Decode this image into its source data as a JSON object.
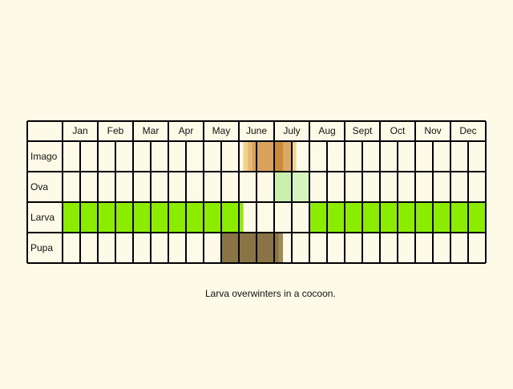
{
  "chart_data": {
    "type": "table",
    "months": [
      "Jan",
      "Feb",
      "Mar",
      "Apr",
      "May",
      "June",
      "July",
      "Aug",
      "Sept",
      "Oct",
      "Nov",
      "Dec"
    ],
    "halves_per_month": 2,
    "stages": [
      {
        "label": "Imago",
        "segments": [
          {
            "start": 10.25,
            "end": 10.5,
            "color": "#f2d08e"
          },
          {
            "start": 10.5,
            "end": 10.75,
            "color": "#e8b876"
          },
          {
            "start": 10.75,
            "end": 12.0,
            "color": "#d9a35e"
          },
          {
            "start": 12.0,
            "end": 12.5,
            "color": "#c98a3e"
          },
          {
            "start": 12.5,
            "end": 13.0,
            "color": "#dba865"
          },
          {
            "start": 13.0,
            "end": 13.25,
            "color": "#f2d08e"
          }
        ]
      },
      {
        "label": "Ova",
        "segments": [
          {
            "start": 12.0,
            "end": 13.0,
            "color": "#c8efab"
          },
          {
            "start": 13.0,
            "end": 14.0,
            "color": "#d6f4bd"
          }
        ]
      },
      {
        "label": "Larva",
        "segments": [
          {
            "start": 0.0,
            "end": 10.25,
            "color": "#8cec00"
          },
          {
            "start": 14.0,
            "end": 24.0,
            "color": "#8cec00"
          }
        ]
      },
      {
        "label": "Pupa",
        "segments": [
          {
            "start": 9.0,
            "end": 12.25,
            "color": "#8a7445"
          },
          {
            "start": 12.25,
            "end": 12.5,
            "color": "#a08a57"
          }
        ]
      }
    ],
    "note": "Larva overwinters in a cocoon.",
    "colors": {
      "background": "#fdfbe8",
      "grid": "#000000",
      "imago": "#d9a35e",
      "ova": "#c8efab",
      "larva": "#8cec00",
      "pupa": "#8a7445"
    }
  }
}
